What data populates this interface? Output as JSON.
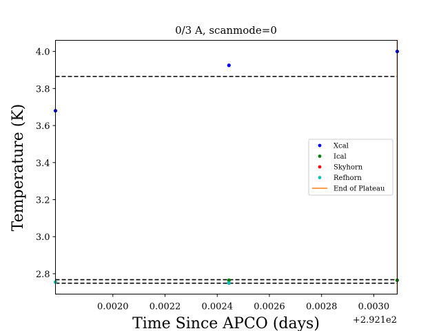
{
  "chart_data": {
    "type": "scatter",
    "title": "0/3 A, scanmode=0",
    "xlabel": "Time Since APCO (days)",
    "ylabel": "Temperature (K)",
    "x_offset_label": "+2.921e2",
    "xlim": [
      0.00178,
      0.00309
    ],
    "ylim": [
      2.69,
      4.06
    ],
    "x_ticks": [
      {
        "value": 0.002,
        "label": "0.0020"
      },
      {
        "value": 0.0022,
        "label": "0.0022"
      },
      {
        "value": 0.0024,
        "label": "0.0024"
      },
      {
        "value": 0.0026,
        "label": "0.0026"
      },
      {
        "value": 0.0028,
        "label": "0.0028"
      },
      {
        "value": 0.003,
        "label": "0.0030"
      }
    ],
    "y_ticks": [
      {
        "value": 2.8,
        "label": "2.8"
      },
      {
        "value": 3.0,
        "label": "3.0"
      },
      {
        "value": 3.2,
        "label": "3.2"
      },
      {
        "value": 3.4,
        "label": "3.4"
      },
      {
        "value": 3.6,
        "label": "3.6"
      },
      {
        "value": 3.8,
        "label": "3.8"
      },
      {
        "value": 4.0,
        "label": "4.0"
      }
    ],
    "series": [
      {
        "name": "Xcal",
        "color": "#0000ff",
        "points": [
          [
            0.00178,
            3.68
          ],
          [
            0.002445,
            3.925
          ],
          [
            0.00309,
            4.0
          ]
        ]
      },
      {
        "name": "Ical",
        "color": "#008000",
        "points": [
          [
            0.002445,
            2.765
          ],
          [
            0.00309,
            2.765
          ]
        ]
      },
      {
        "name": "Skyhorn",
        "color": "#ff0000",
        "points": [
          [
            0.002445,
            2.75
          ]
        ]
      },
      {
        "name": "Refhorn",
        "color": "#00bfbf",
        "points": [
          [
            0.00178,
            2.755
          ],
          [
            0.002445,
            2.75
          ]
        ]
      }
    ],
    "end_of_plateau": {
      "name": "End of Plateau",
      "color": "#ff7f0e",
      "x": 0.00309
    },
    "hlines": [
      {
        "y": 3.865,
        "style": "dashed",
        "color": "#000000"
      },
      {
        "y": 2.768,
        "style": "dashed",
        "color": "#000000"
      },
      {
        "y": 2.749,
        "style": "dashed",
        "color": "#000000"
      }
    ],
    "legend": {
      "placement": "center-right"
    },
    "grid": false
  }
}
